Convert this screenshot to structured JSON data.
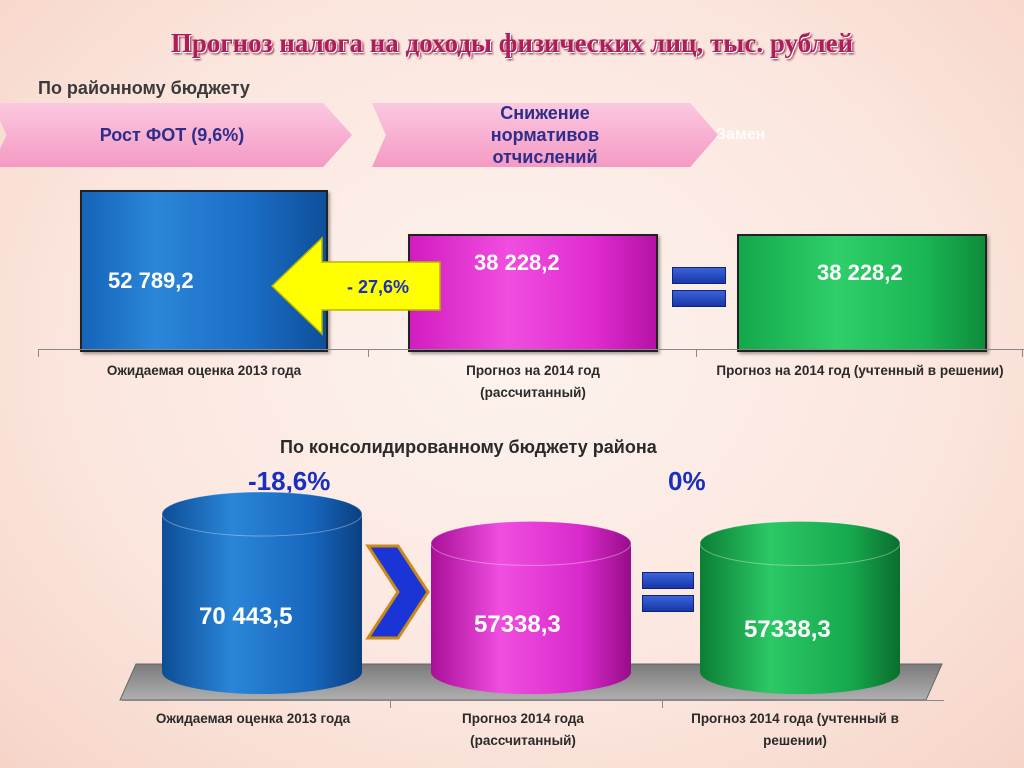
{
  "title": "Прогноз налога на доходы физических лиц, тыс. рублей",
  "section1": {
    "heading": "По районному бюджету",
    "chevrons": [
      "Рост ФОТ (9,6%)",
      "Снижение нормативов отчислений"
    ],
    "ghost_text": "Замен",
    "change_label": "- 27,6%"
  },
  "section2": {
    "heading": "По консолидированному бюджету  района",
    "change_left": "-18,6%",
    "change_right": "0%"
  },
  "chart_data": [
    {
      "type": "bar",
      "title": "По районному бюджету",
      "categories": [
        "Ожидаемая оценка 2013 года",
        "Прогноз на 2014 год (рассчитанный)",
        "Прогноз на 2014 год (учтенный в решении)"
      ],
      "values": [
        52789.2,
        38228.2,
        38228.2
      ],
      "value_labels": [
        "52 789,2",
        "38 228,2",
        "38 228,2"
      ],
      "colors": [
        "#1a6cc4",
        "#e02bd0",
        "#1bb655"
      ],
      "grid": false,
      "legend": "none"
    },
    {
      "type": "bar",
      "title": "По консолидированному бюджету  района",
      "categories": [
        "Ожидаемая оценка 2013 года",
        "Прогноз 2014 года (рассчитанный)",
        "Прогноз 2014 года (учтенный в решении)"
      ],
      "values": [
        70443.5,
        57338.3,
        57338.3
      ],
      "value_labels": [
        "70 443,5",
        "57338,3",
        "57338,3"
      ],
      "colors": [
        "#1a6cc4",
        "#e02bd0",
        "#1bb655"
      ],
      "grid": false,
      "legend": "none"
    }
  ]
}
